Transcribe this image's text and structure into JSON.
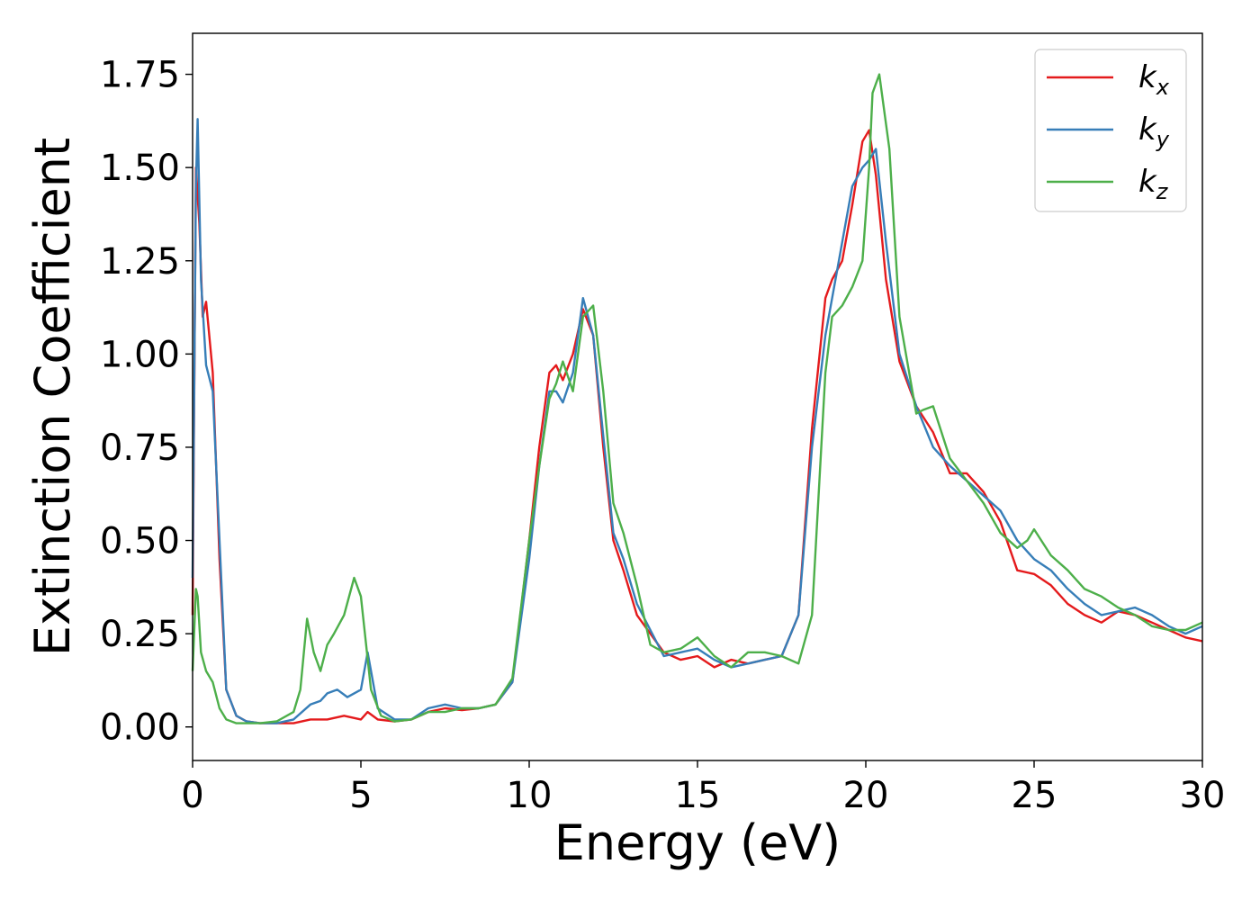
{
  "chart_data": {
    "type": "line",
    "xlabel": "Energy (eV)",
    "ylabel": "Extinction Coefficient",
    "xlim": [
      0,
      30
    ],
    "ylim": [
      -0.09,
      1.86
    ],
    "xticks": [
      "0",
      "5",
      "10",
      "15",
      "20",
      "25",
      "30"
    ],
    "yticks": [
      "0.00",
      "0.25",
      "0.50",
      "0.75",
      "1.00",
      "1.25",
      "1.50",
      "1.75"
    ],
    "grid": false,
    "legend_position": "top-right",
    "series": [
      {
        "name": "k",
        "subscript": "x",
        "color": "#e41a1c",
        "x": [
          0,
          0.1,
          0.2,
          0.3,
          0.4,
          0.6,
          0.8,
          1.0,
          1.3,
          1.6,
          2.0,
          2.5,
          3.0,
          3.5,
          4.0,
          4.5,
          5.0,
          5.2,
          5.5,
          6.0,
          6.5,
          7.0,
          7.5,
          8.0,
          8.5,
          9.0,
          9.5,
          10.0,
          10.3,
          10.6,
          10.8,
          11.0,
          11.3,
          11.6,
          11.9,
          12.2,
          12.5,
          12.8,
          13.2,
          13.6,
          14.0,
          14.5,
          15.0,
          15.5,
          16.0,
          16.5,
          17.0,
          17.5,
          18.0,
          18.4,
          18.8,
          19.0,
          19.3,
          19.6,
          19.9,
          20.1,
          20.3,
          20.6,
          21.0,
          21.5,
          22.0,
          22.5,
          23.0,
          23.5,
          24.0,
          24.5,
          25.0,
          25.5,
          26.0,
          26.5,
          27.0,
          27.5,
          28.0,
          28.5,
          29.0,
          29.5,
          30.0
        ],
        "values": [
          0.3,
          1.5,
          1.35,
          1.1,
          1.14,
          0.95,
          0.45,
          0.1,
          0.03,
          0.015,
          0.01,
          0.01,
          0.01,
          0.02,
          0.02,
          0.03,
          0.02,
          0.04,
          0.02,
          0.015,
          0.02,
          0.04,
          0.05,
          0.045,
          0.05,
          0.06,
          0.12,
          0.5,
          0.75,
          0.95,
          0.97,
          0.93,
          1.0,
          1.12,
          1.05,
          0.75,
          0.5,
          0.42,
          0.3,
          0.25,
          0.2,
          0.18,
          0.19,
          0.16,
          0.18,
          0.17,
          0.18,
          0.19,
          0.3,
          0.8,
          1.15,
          1.2,
          1.25,
          1.4,
          1.57,
          1.6,
          1.48,
          1.2,
          0.98,
          0.86,
          0.79,
          0.68,
          0.68,
          0.63,
          0.55,
          0.42,
          0.41,
          0.38,
          0.33,
          0.3,
          0.28,
          0.31,
          0.3,
          0.28,
          0.26,
          0.24,
          0.23
        ]
      },
      {
        "name": "k",
        "subscript": "y",
        "color": "#377eb8",
        "x": [
          0,
          0.1,
          0.15,
          0.25,
          0.4,
          0.6,
          0.8,
          1.0,
          1.3,
          1.6,
          2.0,
          2.5,
          3.0,
          3.5,
          3.8,
          4.0,
          4.3,
          4.6,
          5.0,
          5.2,
          5.5,
          6.0,
          6.5,
          7.0,
          7.5,
          8.0,
          8.5,
          9.0,
          9.5,
          10.0,
          10.3,
          10.6,
          10.8,
          11.0,
          11.3,
          11.6,
          11.9,
          12.2,
          12.5,
          12.8,
          13.2,
          13.6,
          14.0,
          14.5,
          15.0,
          15.5,
          16.0,
          16.5,
          17.0,
          17.5,
          18.0,
          18.4,
          18.8,
          19.0,
          19.3,
          19.6,
          19.9,
          20.1,
          20.3,
          20.6,
          21.0,
          21.5,
          22.0,
          22.5,
          23.0,
          23.5,
          24.0,
          24.5,
          25.0,
          25.5,
          26.0,
          26.5,
          27.0,
          27.5,
          28.0,
          28.5,
          29.0,
          29.5,
          30.0
        ],
        "values": [
          0.4,
          1.45,
          1.63,
          1.2,
          0.97,
          0.9,
          0.5,
          0.1,
          0.03,
          0.015,
          0.01,
          0.01,
          0.02,
          0.06,
          0.07,
          0.09,
          0.1,
          0.08,
          0.1,
          0.2,
          0.05,
          0.02,
          0.02,
          0.05,
          0.06,
          0.05,
          0.05,
          0.06,
          0.12,
          0.45,
          0.7,
          0.9,
          0.9,
          0.87,
          0.95,
          1.15,
          1.05,
          0.78,
          0.52,
          0.45,
          0.33,
          0.26,
          0.19,
          0.2,
          0.21,
          0.18,
          0.16,
          0.17,
          0.18,
          0.19,
          0.3,
          0.75,
          1.05,
          1.15,
          1.3,
          1.45,
          1.5,
          1.52,
          1.55,
          1.3,
          1.0,
          0.86,
          0.75,
          0.7,
          0.66,
          0.62,
          0.58,
          0.5,
          0.45,
          0.42,
          0.37,
          0.33,
          0.3,
          0.31,
          0.32,
          0.3,
          0.27,
          0.25,
          0.27
        ]
      },
      {
        "name": "k",
        "subscript": "z",
        "color": "#4daf4a",
        "x": [
          0,
          0.1,
          0.15,
          0.25,
          0.4,
          0.6,
          0.8,
          1.0,
          1.3,
          1.6,
          2.0,
          2.5,
          3.0,
          3.2,
          3.4,
          3.6,
          3.8,
          4.0,
          4.2,
          4.5,
          4.8,
          5.0,
          5.3,
          5.6,
          6.0,
          6.5,
          7.0,
          7.5,
          8.0,
          8.5,
          9.0,
          9.5,
          10.0,
          10.3,
          10.6,
          10.8,
          11.0,
          11.3,
          11.6,
          11.9,
          12.2,
          12.5,
          12.8,
          13.2,
          13.6,
          14.0,
          14.5,
          15.0,
          15.5,
          16.0,
          16.5,
          17.0,
          17.5,
          18.0,
          18.4,
          18.8,
          19.0,
          19.3,
          19.6,
          19.9,
          20.1,
          20.2,
          20.4,
          20.7,
          21.0,
          21.5,
          21.7,
          22.0,
          22.5,
          23.0,
          23.5,
          24.0,
          24.5,
          24.8,
          25.0,
          25.5,
          26.0,
          26.5,
          27.0,
          27.5,
          28.0,
          28.5,
          29.0,
          29.5,
          30.0
        ],
        "values": [
          0.15,
          0.37,
          0.35,
          0.2,
          0.15,
          0.12,
          0.05,
          0.02,
          0.01,
          0.01,
          0.01,
          0.015,
          0.04,
          0.1,
          0.29,
          0.2,
          0.15,
          0.22,
          0.25,
          0.3,
          0.4,
          0.35,
          0.1,
          0.03,
          0.015,
          0.02,
          0.04,
          0.04,
          0.05,
          0.05,
          0.06,
          0.13,
          0.5,
          0.7,
          0.88,
          0.92,
          0.98,
          0.9,
          1.1,
          1.13,
          0.9,
          0.6,
          0.52,
          0.38,
          0.22,
          0.2,
          0.21,
          0.24,
          0.19,
          0.16,
          0.2,
          0.2,
          0.19,
          0.17,
          0.3,
          0.95,
          1.1,
          1.13,
          1.18,
          1.25,
          1.5,
          1.7,
          1.75,
          1.55,
          1.1,
          0.84,
          0.85,
          0.86,
          0.72,
          0.66,
          0.6,
          0.52,
          0.48,
          0.5,
          0.53,
          0.46,
          0.42,
          0.37,
          0.35,
          0.32,
          0.3,
          0.27,
          0.26,
          0.26,
          0.28
        ]
      }
    ]
  }
}
